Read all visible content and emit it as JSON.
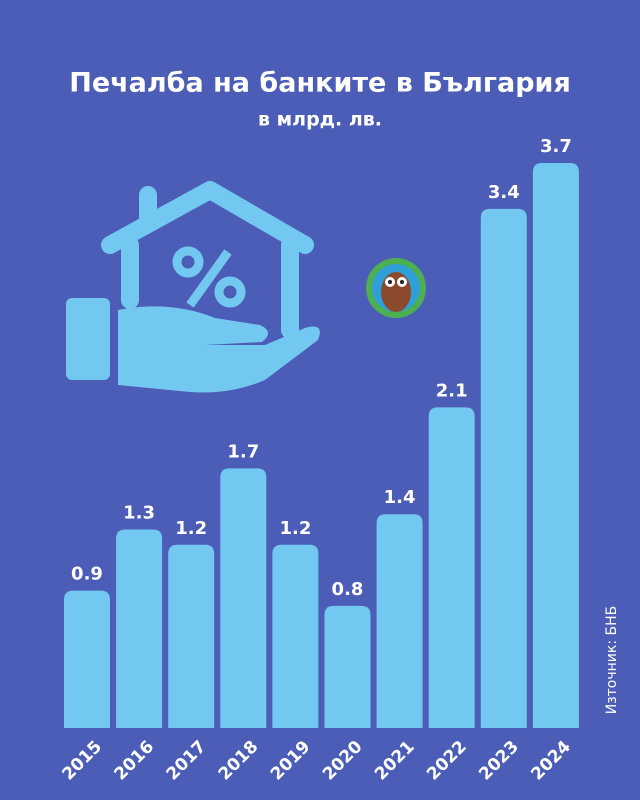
{
  "chart_data": {
    "type": "bar",
    "title": "Печалба на банките в България",
    "subtitle": "в млрд. лв.",
    "categories": [
      "2015",
      "2016",
      "2017",
      "2018",
      "2019",
      "2020",
      "2021",
      "2022",
      "2023",
      "2024"
    ],
    "values": [
      0.9,
      1.3,
      1.2,
      1.7,
      1.2,
      0.8,
      1.4,
      2.1,
      3.4,
      3.7
    ],
    "color": "#72c8f0",
    "source": "Източник: БНБ"
  }
}
